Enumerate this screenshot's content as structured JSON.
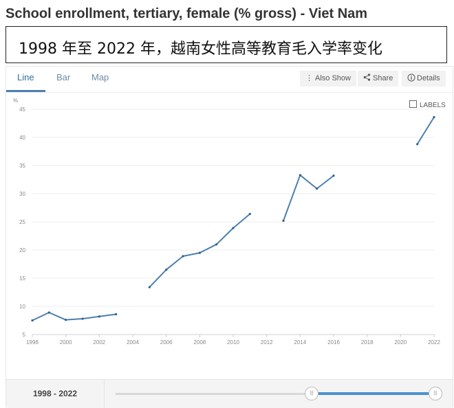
{
  "title": "School enrollment, tertiary, female (% gross) - Viet Nam",
  "caption": "1998 年至 2022 年，越南女性高等教育毛入学率变化",
  "tabs": [
    {
      "label": "Line",
      "active": true
    },
    {
      "label": "Bar",
      "active": false
    },
    {
      "label": "Map",
      "active": false
    }
  ],
  "toolbar": {
    "also_show": "Also Show",
    "share": "Share",
    "details": "Details",
    "also_show_icon": "vertical-ellipsis-icon",
    "share_icon": "share-icon",
    "details_icon": "info-icon"
  },
  "labels_toggle": {
    "label": "LABELS",
    "checked": false
  },
  "footer": {
    "range_start": "1998",
    "range_end": "2022",
    "separator": " - "
  },
  "slider": {
    "min": 1960,
    "max": 2022,
    "start": 1998,
    "end": 2022
  },
  "colors": {
    "line": "#4a7fb0",
    "accent": "#4a90d0"
  },
  "chart_data": {
    "type": "line",
    "title": "",
    "xlabel": "",
    "ylabel": "%",
    "xlim": [
      1998,
      2022
    ],
    "ylim": [
      5,
      45
    ],
    "x_ticks": [
      1998,
      2000,
      2002,
      2004,
      2006,
      2008,
      2010,
      2012,
      2014,
      2016,
      2018,
      2020,
      2022
    ],
    "y_ticks": [
      5,
      10,
      15,
      20,
      25,
      30,
      35,
      40,
      45
    ],
    "grid": "horizontal",
    "series": [
      {
        "values": [
          {
            "x": 1998,
            "y": 7.5
          },
          {
            "x": 1999,
            "y": 8.9
          },
          {
            "x": 2000,
            "y": 7.6
          },
          {
            "x": 2001,
            "y": 7.8
          },
          {
            "x": 2002,
            "y": 8.2
          },
          {
            "x": 2003,
            "y": 8.6
          },
          {
            "x": 2004,
            "y": null
          },
          {
            "x": 2005,
            "y": 13.4
          },
          {
            "x": 2006,
            "y": 16.5
          },
          {
            "x": 2007,
            "y": 18.9
          },
          {
            "x": 2008,
            "y": 19.5
          },
          {
            "x": 2009,
            "y": 21.0
          },
          {
            "x": 2010,
            "y": 23.9
          },
          {
            "x": 2011,
            "y": 26.4
          },
          {
            "x": 2012,
            "y": null
          },
          {
            "x": 2013,
            "y": 25.2
          },
          {
            "x": 2014,
            "y": 33.3
          },
          {
            "x": 2015,
            "y": 30.9
          },
          {
            "x": 2016,
            "y": 33.2
          },
          {
            "x": 2017,
            "y": null
          },
          {
            "x": 2018,
            "y": null
          },
          {
            "x": 2019,
            "y": null
          },
          {
            "x": 2020,
            "y": null
          },
          {
            "x": 2021,
            "y": 38.8
          },
          {
            "x": 2022,
            "y": 43.6
          }
        ]
      }
    ]
  }
}
